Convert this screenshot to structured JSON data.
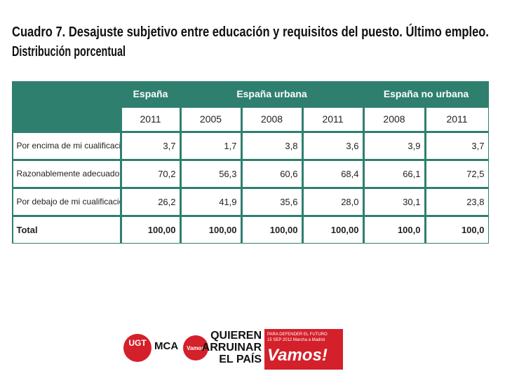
{
  "header": {
    "title_line1": "Cuadro 7. Desajuste subjetivo entre educación y requisitos del puesto. Último empleo.",
    "title_line2": "Distribución porcentual"
  },
  "table": {
    "groups": [
      "España",
      "España urbana",
      "España no urbana"
    ],
    "years": [
      "2011",
      "2005",
      "2008",
      "2011",
      "2008",
      "2011"
    ],
    "rows": [
      [
        "Por encima de mi cualificación",
        "3,7",
        "1,7",
        "3,8",
        "3,6",
        "3,9",
        "3,7"
      ],
      [
        "Razonablemente adecuado",
        "70,2",
        "56,3",
        "60,6",
        "68,4",
        "66,1",
        "72,5"
      ],
      [
        "Por debajo de mi cualificación",
        "26,2",
        "41,9",
        "35,6",
        "28,0",
        "30,1",
        "23,8"
      ],
      [
        "Total",
        "100,00",
        "100,00",
        "100,00",
        "100,00",
        "100,0",
        "100,0"
      ]
    ]
  },
  "footer": {
    "ugt": "UGT",
    "mca": "MCA",
    "vamos_small": "Vamos",
    "slogan": [
      "QUIEREN",
      "ARRUINAR",
      "EL PAÍS"
    ],
    "tagline": "PARA DEFENDER EL FUTURO",
    "date": "15 SEP 2012 Marcha a Madrid",
    "vamos": "Vamos!"
  }
}
